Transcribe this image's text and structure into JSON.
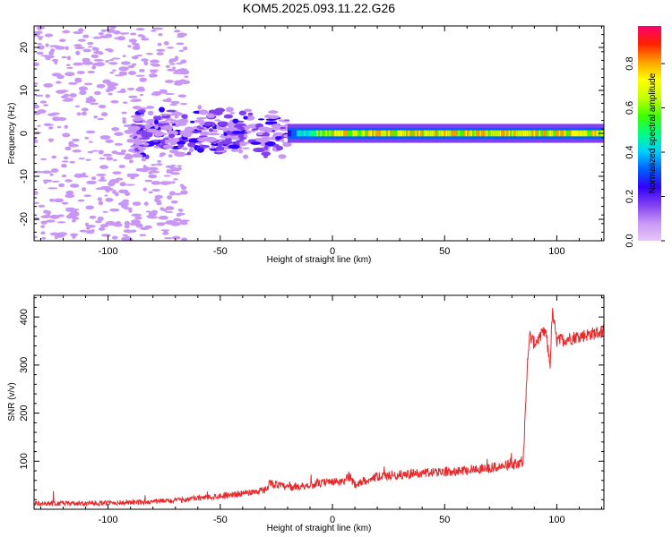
{
  "title": "KOM5.2025.093.11.22.G26",
  "chart_data": [
    {
      "type": "heatmap",
      "xlabel": "Height of straight line (km)",
      "ylabel": "Frequency (Hz)",
      "xlim": [
        -133,
        121
      ],
      "ylim": [
        -25,
        25
      ],
      "xticks": [
        -100,
        -50,
        0,
        50,
        100
      ],
      "yticks": [
        -20,
        -10,
        0,
        10,
        20
      ],
      "colorbar": {
        "label": "Normalized spectral amplitude",
        "range": [
          0,
          0.97
        ],
        "ticks": [
          0.0,
          0.2,
          0.4,
          0.6,
          0.8
        ],
        "tick_labels": [
          "0.0",
          "0.2",
          "0.4",
          "0.6",
          "0.8"
        ],
        "colormap": [
          "#e6c8f8",
          "#c896f5",
          "#8040f0",
          "#3000ff",
          "#0060ff",
          "#00d0ff",
          "#00ff80",
          "#40ff00",
          "#c8ff00",
          "#ffff00",
          "#ffa000",
          "#ff2000",
          "#ff0070"
        ]
      },
      "description_bands": [
        {
          "x_range": [
            -133,
            -65
          ],
          "freq_range": [
            -25,
            25
          ],
          "amplitude": 0.05
        },
        {
          "x_range": [
            -90,
            -20
          ],
          "freq_range": [
            -6,
            5
          ],
          "amplitude": 0.22
        },
        {
          "x_range": [
            -20,
            121
          ],
          "freq_range": [
            -2,
            2
          ],
          "amplitude": 0.8
        }
      ]
    },
    {
      "type": "line",
      "xlabel": "Height of straight line (km)",
      "ylabel": "SNR (v/v)",
      "xlim": [
        -133,
        121
      ],
      "ylim": [
        0,
        445
      ],
      "xticks": [
        -100,
        -50,
        0,
        50,
        100
      ],
      "yticks": [
        100,
        200,
        300,
        400
      ],
      "series": [
        {
          "color": "#e8292b",
          "x": [
            -133,
            -110,
            -90,
            -70,
            -50,
            -40,
            -30,
            -28,
            -20,
            -10,
            0,
            5,
            7,
            10,
            20,
            40,
            60,
            75,
            85,
            86,
            87,
            88,
            90,
            95,
            97,
            98,
            100,
            110,
            121
          ],
          "y": [
            12,
            12,
            14,
            18,
            28,
            33,
            40,
            55,
            45,
            50,
            58,
            55,
            70,
            52,
            68,
            75,
            82,
            88,
            100,
            200,
            320,
            360,
            345,
            370,
            300,
            410,
            350,
            360,
            370
          ]
        }
      ]
    }
  ]
}
